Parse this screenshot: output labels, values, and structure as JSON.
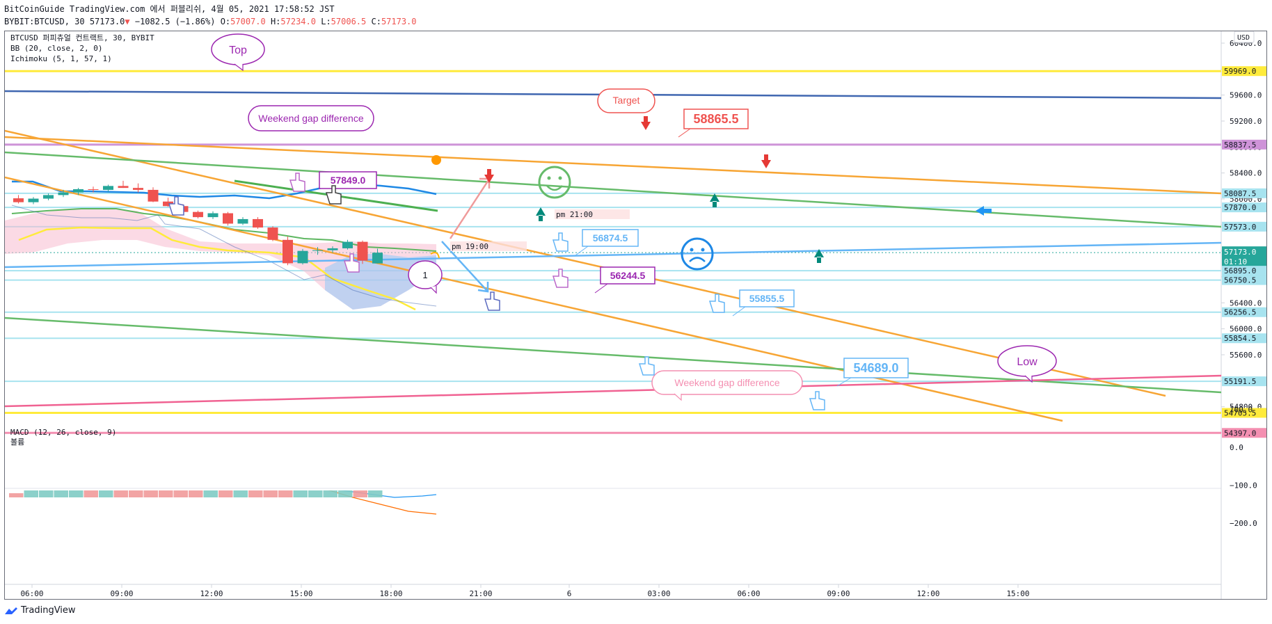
{
  "header": {
    "line1": "BitCoinGuide TradingView.com 에서 퍼블리쉬, 4월 05, 2021 17:58:52 JST",
    "symbol_prefix": "BYBIT:BTCUSD, 30 57173.0",
    "change": "−1082.5 (−1.86%)",
    "o_label": "O:",
    "o_value": "57007.0",
    "h_label": "H:",
    "h_value": "57234.0",
    "l_label": "L:",
    "l_value": "57006.5",
    "c_label": "C:",
    "c_value": "57173.0"
  },
  "legend": {
    "title": "BTCUSD 퍼피츄얼 컨트랙트, 30, BYBIT",
    "bb": "BB (20, close, 2, 0)",
    "ichimoku": "Ichimoku (5, 1, 57, 1)",
    "macd": "MACD (12, 26, close, 9)",
    "volume": "볼륨"
  },
  "currency": "USD",
  "footer": {
    "brand": "TradingView"
  },
  "colors": {
    "up": "#26a69a",
    "down": "#ef5350",
    "orange": "#f7a534",
    "green": "#66bb6a",
    "blue": "#64b5f6",
    "pink": "#f06292",
    "yellow": "#ffeb3b",
    "navy": "#3f66b0",
    "purple": "#9c27b0",
    "cyan": "#a7e3ef"
  },
  "chart_data": [
    {
      "type": "candlestick",
      "y_axis": {
        "ylim": [
          54100,
          60600
        ],
        "ticks": [
          60400,
          60000,
          59600,
          59200,
          58800,
          58400,
          58000,
          57600,
          57200,
          56800,
          56400,
          56000,
          55600,
          55200,
          54800,
          54400
        ],
        "tick_labels": [
          "60400.0",
          "60000.0",
          "59600.0",
          "59200.0",
          "58800.0",
          "58400.0",
          "58000.0",
          "57600.0",
          "57200.0",
          "56800.0",
          "56400.0",
          "56000.0",
          "55600.0",
          "55200.0",
          "54800.0",
          "54400.0"
        ]
      },
      "x_axis": {
        "tick_labels": [
          "06:00",
          "09:00",
          "12:00",
          "15:00",
          "18:00",
          "21:00",
          "6",
          "03:00",
          "06:00",
          "09:00",
          "12:00",
          "15:00"
        ]
      },
      "price_labels": [
        {
          "text": "59969.0",
          "value": 59969,
          "color": "#ffeb3b"
        },
        {
          "text": "58837.5",
          "value": 58837.5,
          "color": "#ce93d8"
        },
        {
          "text": "58087.5",
          "value": 58087.5,
          "color": "#a7e3ef"
        },
        {
          "text": "57870.0",
          "value": 57870,
          "color": "#a7e3ef"
        },
        {
          "text": "57573.0",
          "value": 57573,
          "color": "#a7e3ef"
        },
        {
          "text": "57173.0",
          "text2": "01:10",
          "value": 57173,
          "color": "#26a69a"
        },
        {
          "text": "56895.0",
          "value": 56895,
          "color": "#a7e3ef"
        },
        {
          "text": "56750.5",
          "value": 56750.5,
          "color": "#a7e3ef"
        },
        {
          "text": "56256.5",
          "value": 56256.5,
          "color": "#a7e3ef"
        },
        {
          "text": "55854.5",
          "value": 55854.5,
          "color": "#a7e3ef"
        },
        {
          "text": "55191.5",
          "value": 55191.5,
          "color": "#a7e3ef"
        },
        {
          "text": "54705.5",
          "value": 54705.5,
          "color": "#ffeb3b"
        },
        {
          "text": "54397.0",
          "value": 54397,
          "color": "#f48fb1"
        }
      ],
      "candles": [
        [
          58010,
          58060,
          57930,
          57950
        ],
        [
          57950,
          58030,
          57920,
          58005
        ],
        [
          58005,
          58085,
          57980,
          58060
        ],
        [
          58060,
          58140,
          58030,
          58100
        ],
        [
          58100,
          58170,
          58060,
          58150
        ],
        [
          58150,
          58190,
          58100,
          58140
        ],
        [
          58140,
          58220,
          58110,
          58200
        ],
        [
          58200,
          58280,
          58170,
          58170
        ],
        [
          58170,
          58240,
          58100,
          58140
        ],
        [
          58140,
          58180,
          57950,
          57960
        ],
        [
          57960,
          58020,
          57880,
          57890
        ],
        [
          57890,
          57920,
          57780,
          57800
        ],
        [
          57800,
          57820,
          57700,
          57720
        ],
        [
          57720,
          57810,
          57690,
          57780
        ],
        [
          57780,
          57800,
          57590,
          57620
        ],
        [
          57620,
          57720,
          57600,
          57690
        ],
        [
          57690,
          57720,
          57540,
          57560
        ],
        [
          57560,
          57580,
          57350,
          57370
        ],
        [
          57370,
          57420,
          56980,
          57010
        ],
        [
          57010,
          57230,
          56990,
          57200
        ],
        [
          57200,
          57260,
          57140,
          57210
        ],
        [
          57210,
          57270,
          57170,
          57240
        ],
        [
          57240,
          57370,
          57220,
          57340
        ],
        [
          57340,
          57360,
          57000,
          57050
        ],
        [
          57007,
          57234,
          57006.5,
          57173
        ]
      ],
      "macd": {
        "ylim": [
          -260,
          130
        ],
        "ticks": [
          100,
          0,
          -100,
          -200
        ],
        "tick_labels": [
          "100.0",
          "0.0",
          "−100.0",
          "−200.0"
        ]
      },
      "volume": [
        20,
        95,
        70,
        85,
        60,
        75,
        60,
        190,
        130,
        170,
        140,
        60,
        160,
        65,
        65,
        120,
        120,
        230,
        150,
        90,
        200,
        165,
        135,
        150,
        125
      ]
    }
  ],
  "annotations": {
    "top": "Top",
    "weekend1": "Weekend gap difference",
    "target": "Target",
    "price_58865": "58865.5",
    "price_57849": "57849.0",
    "pm2100": "pm 21:00",
    "pm1900": "pm 19:00",
    "price_56874": "56874.5",
    "one": "1",
    "price_56244": "56244.5",
    "price_55855": "55855.5",
    "price_54689": "54689.0",
    "weekend2": "Weekend gap difference",
    "low": "Low"
  }
}
